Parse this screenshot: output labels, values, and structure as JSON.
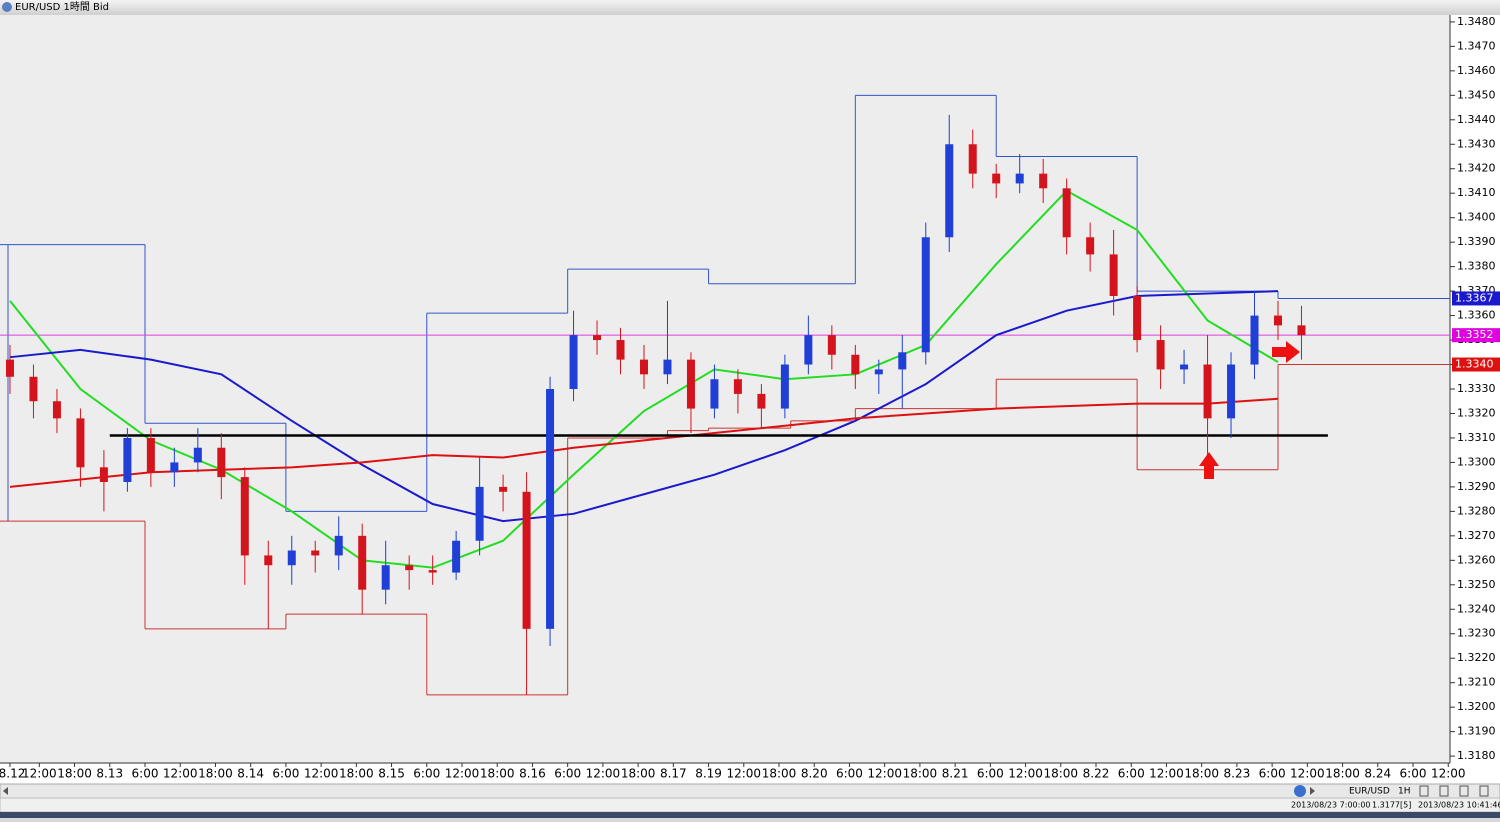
{
  "window": {
    "title": "EUR/USD 1時間 Bid"
  },
  "chart_data": {
    "type": "candlestick",
    "xlim": [
      5.3,
      252.3
    ],
    "ylim": [
      1.3178,
      1.3482
    ],
    "yticks": [
      {
        "value": 1.318,
        "label": "1.3180"
      },
      {
        "value": 1.319,
        "label": "1.3190"
      },
      {
        "value": 1.32,
        "label": "1.3200"
      },
      {
        "value": 1.321,
        "label": "1.3210"
      },
      {
        "value": 1.322,
        "label": "1.3220"
      },
      {
        "value": 1.323,
        "label": "1.3230"
      },
      {
        "value": 1.324,
        "label": "1.3240"
      },
      {
        "value": 1.325,
        "label": "1.3250"
      },
      {
        "value": 1.326,
        "label": "1.3260"
      },
      {
        "value": 1.327,
        "label": "1.3270"
      },
      {
        "value": 1.328,
        "label": "1.3280"
      },
      {
        "value": 1.329,
        "label": "1.3290"
      },
      {
        "value": 1.33,
        "label": "1.3300"
      },
      {
        "value": 1.331,
        "label": "1.3310"
      },
      {
        "value": 1.332,
        "label": "1.3320"
      },
      {
        "value": 1.333,
        "label": "1.3330"
      },
      {
        "value": 1.334,
        "label": "1.3340"
      },
      {
        "value": 1.335,
        "label": "1.3350"
      },
      {
        "value": 1.336,
        "label": "1.3360"
      },
      {
        "value": 1.337,
        "label": "1.3370"
      },
      {
        "value": 1.338,
        "label": "1.3380"
      },
      {
        "value": 1.339,
        "label": "1.3390"
      },
      {
        "value": 1.34,
        "label": "1.3400"
      },
      {
        "value": 1.341,
        "label": "1.3410"
      },
      {
        "value": 1.342,
        "label": "1.3420"
      },
      {
        "value": 1.343,
        "label": "1.3430"
      },
      {
        "value": 1.344,
        "label": "1.3440"
      },
      {
        "value": 1.345,
        "label": "1.3450"
      },
      {
        "value": 1.346,
        "label": "1.3460"
      },
      {
        "value": 1.347,
        "label": "1.3470"
      },
      {
        "value": 1.348,
        "label": "1.3480"
      }
    ],
    "xticks": [
      {
        "value": 7,
        "label": "8.12"
      },
      {
        "value": 12,
        "label": "12:00"
      },
      {
        "value": 18,
        "label": "18:00"
      },
      {
        "value": 24,
        "label": "8.13"
      },
      {
        "value": 30,
        "label": "6:00"
      },
      {
        "value": 36,
        "label": "12:00"
      },
      {
        "value": 42,
        "label": "18:00"
      },
      {
        "value": 48,
        "label": "8.14"
      },
      {
        "value": 54,
        "label": "6:00"
      },
      {
        "value": 60,
        "label": "12:00"
      },
      {
        "value": 66,
        "label": "18:00"
      },
      {
        "value": 72,
        "label": "8.15"
      },
      {
        "value": 78,
        "label": "6:00"
      },
      {
        "value": 84,
        "label": "12:00"
      },
      {
        "value": 90,
        "label": "18:00"
      },
      {
        "value": 96,
        "label": "8.16"
      },
      {
        "value": 102,
        "label": "6:00"
      },
      {
        "value": 108,
        "label": "12:00"
      },
      {
        "value": 114,
        "label": "18:00"
      },
      {
        "value": 120,
        "label": "8.17"
      },
      {
        "value": 126,
        "label": "8.19"
      },
      {
        "value": 132,
        "label": "12:00"
      },
      {
        "value": 138,
        "label": "18:00"
      },
      {
        "value": 144,
        "label": "8.20"
      },
      {
        "value": 150,
        "label": "6:00"
      },
      {
        "value": 156,
        "label": "12:00"
      },
      {
        "value": 162,
        "label": "18:00"
      },
      {
        "value": 168,
        "label": "8.21"
      },
      {
        "value": 174,
        "label": "6:00"
      },
      {
        "value": 180,
        "label": "12:00"
      },
      {
        "value": 186,
        "label": "18:00"
      },
      {
        "value": 192,
        "label": "8.22"
      },
      {
        "value": 198,
        "label": "6:00"
      },
      {
        "value": 204,
        "label": "12:00"
      },
      {
        "value": 210,
        "label": "18:00"
      },
      {
        "value": 216,
        "label": "8.23"
      },
      {
        "value": 222,
        "label": "6:00"
      },
      {
        "value": 228,
        "label": "12:00"
      },
      {
        "value": 234,
        "label": "18:00"
      },
      {
        "value": 240,
        "label": "8.24"
      },
      {
        "value": 246,
        "label": "6:00"
      },
      {
        "value": 252,
        "label": "12:00"
      }
    ],
    "up_color": "#1f3fd6",
    "down_color": "#d4141c",
    "x": [
      7,
      11,
      15,
      19,
      23,
      27,
      31,
      35,
      39,
      43,
      47,
      51,
      55,
      59,
      63,
      67,
      71,
      75,
      79,
      83,
      87,
      91,
      95,
      99,
      103,
      107,
      111,
      115,
      119,
      123,
      127,
      131,
      135,
      139,
      143,
      147,
      151,
      155,
      159,
      163,
      167,
      171,
      175,
      179,
      183,
      187,
      191,
      195,
      199,
      203,
      207,
      211,
      215,
      219,
      223,
      227
    ],
    "open": [
      1.3342,
      1.3335,
      1.3325,
      1.3318,
      1.3298,
      1.3292,
      1.331,
      1.3296,
      1.33,
      1.3306,
      1.3294,
      1.3262,
      1.3258,
      1.3264,
      1.3262,
      1.327,
      1.3248,
      1.3258,
      1.3256,
      1.3255,
      1.3268,
      1.329,
      1.3288,
      1.3232,
      1.333,
      1.3352,
      1.335,
      1.3342,
      1.3336,
      1.3342,
      1.3322,
      1.3334,
      1.3328,
      1.3322,
      1.334,
      1.3352,
      1.3344,
      1.3336,
      1.3338,
      1.3345,
      1.3392,
      1.343,
      1.3418,
      1.3414,
      1.3418,
      1.3412,
      1.3392,
      1.3385,
      1.3368,
      1.335,
      1.3338,
      1.334,
      1.3318,
      1.334,
      1.336,
      1.3356
    ],
    "high": [
      1.3348,
      1.334,
      1.333,
      1.3322,
      1.3305,
      1.3314,
      1.3314,
      1.3306,
      1.3314,
      1.3312,
      1.3298,
      1.3268,
      1.327,
      1.3268,
      1.3278,
      1.3275,
      1.3268,
      1.3262,
      1.3262,
      1.3272,
      1.3302,
      1.3295,
      1.3296,
      1.3335,
      1.3362,
      1.3358,
      1.3355,
      1.3348,
      1.3366,
      1.3345,
      1.334,
      1.3338,
      1.3332,
      1.3344,
      1.336,
      1.3356,
      1.3348,
      1.3342,
      1.3352,
      1.3398,
      1.3442,
      1.3436,
      1.3422,
      1.3426,
      1.3424,
      1.3416,
      1.3398,
      1.3395,
      1.3372,
      1.3356,
      1.3346,
      1.3352,
      1.3345,
      1.337,
      1.3366,
      1.3364
    ],
    "low": [
      1.3328,
      1.3318,
      1.3312,
      1.329,
      1.328,
      1.3288,
      1.329,
      1.329,
      1.3296,
      1.3285,
      1.325,
      1.3232,
      1.325,
      1.3255,
      1.3256,
      1.3238,
      1.3242,
      1.3248,
      1.325,
      1.3252,
      1.3262,
      1.328,
      1.3205,
      1.3225,
      1.3325,
      1.3344,
      1.3336,
      1.333,
      1.3332,
      1.3312,
      1.3318,
      1.332,
      1.3314,
      1.3318,
      1.3336,
      1.3338,
      1.333,
      1.3328,
      1.3322,
      1.334,
      1.3386,
      1.3412,
      1.3408,
      1.341,
      1.3406,
      1.3385,
      1.3378,
      1.336,
      1.3345,
      1.333,
      1.3332,
      1.3302,
      1.331,
      1.3334,
      1.335,
      1.3342
    ],
    "close": [
      1.3335,
      1.3325,
      1.3318,
      1.3298,
      1.3292,
      1.331,
      1.3296,
      1.33,
      1.3306,
      1.3294,
      1.3262,
      1.3258,
      1.3264,
      1.3262,
      1.327,
      1.3248,
      1.3258,
      1.3256,
      1.3255,
      1.3268,
      1.329,
      1.3288,
      1.3232,
      1.333,
      1.3352,
      1.335,
      1.3342,
      1.3336,
      1.3342,
      1.3322,
      1.3334,
      1.3328,
      1.3322,
      1.334,
      1.3352,
      1.3344,
      1.3336,
      1.3338,
      1.3345,
      1.3392,
      1.343,
      1.3418,
      1.3414,
      1.3418,
      1.3412,
      1.3392,
      1.3385,
      1.3368,
      1.335,
      1.3338,
      1.334,
      1.3318,
      1.334,
      1.336,
      1.3356,
      1.3352
    ],
    "moving_averages": {
      "x": [
        7,
        19,
        31,
        43,
        55,
        67,
        79,
        91,
        103,
        115,
        127,
        139,
        151,
        163,
        175,
        187,
        199,
        211,
        223
      ],
      "series": [
        {
          "color": "#22dd22",
          "values": [
            1.3366,
            1.333,
            1.3309,
            1.3297,
            1.328,
            1.326,
            1.3257,
            1.3268,
            1.3295,
            1.3321,
            1.3338,
            1.3334,
            1.3336,
            1.3348,
            1.3381,
            1.3411,
            1.3395,
            1.3358,
            1.3341
          ]
        },
        {
          "color": "#1a1acc",
          "values": [
            1.3343,
            1.3346,
            1.3342,
            1.3336,
            1.3317,
            1.3299,
            1.3283,
            1.3276,
            1.3279,
            1.3287,
            1.3295,
            1.3305,
            1.3317,
            1.3332,
            1.3352,
            1.3362,
            1.3368,
            1.3369,
            1.337
          ]
        },
        {
          "color": "#dd1111",
          "values": [
            1.329,
            1.3293,
            1.3296,
            1.3297,
            1.3298,
            1.33,
            1.3303,
            1.3302,
            1.3306,
            1.3309,
            1.3312,
            1.3315,
            1.3318,
            1.332,
            1.3322,
            1.3323,
            1.3324,
            1.3324,
            1.3326
          ]
        }
      ]
    },
    "day_ranges": {
      "bounds": [
        5.3,
        30,
        54,
        78,
        102,
        119,
        126,
        140,
        151,
        175,
        199,
        223,
        252.3
      ],
      "high": [
        1.3389,
        1.3316,
        1.328,
        1.3361,
        1.3379,
        1.3379,
        1.3373,
        1.3373,
        1.345,
        1.3425,
        1.337,
        1.3367
      ],
      "low": [
        1.3276,
        1.3232,
        1.3238,
        1.3205,
        1.331,
        1.3313,
        1.3314,
        1.3317,
        1.3322,
        1.3334,
        1.3297,
        1.334
      ],
      "high_color": "#3355cc",
      "low_color": "#cc3333"
    },
    "support_line": {
      "value": 1.3311,
      "from": 24,
      "to": 231.5,
      "color": "#000000"
    },
    "bid_line": {
      "value": 1.3352,
      "color": "#e040e0"
    },
    "price_markers": [
      {
        "value": 1.3367,
        "label": "1.3367",
        "color": "#1a1acc"
      },
      {
        "value": 1.3352,
        "label": "1.3352",
        "color": "#e000e0"
      },
      {
        "value": 1.334,
        "label": "1.3340",
        "color": "#dd1111"
      }
    ]
  },
  "toolbar": {
    "symbol": "EUR/USD",
    "timeframe": "1H"
  },
  "status": {
    "time": "2013/08/23 7:00:00",
    "price": "1.3177[5]",
    "now": "2013/08/23 10:41:46"
  }
}
